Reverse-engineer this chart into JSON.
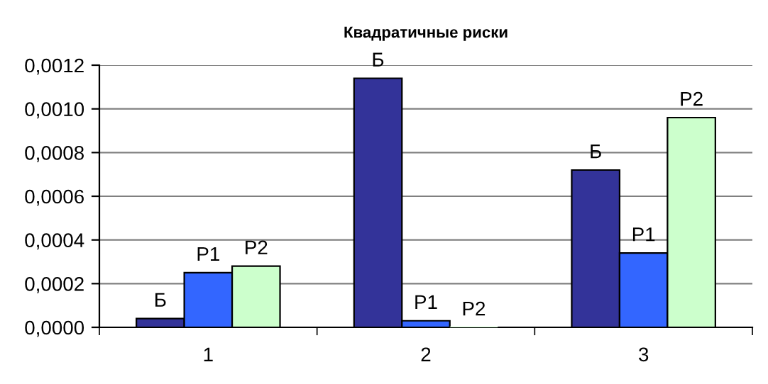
{
  "chart_data": {
    "type": "bar",
    "title": "Квадратичные риски",
    "categories": [
      "1",
      "2",
      "3"
    ],
    "series": [
      {
        "name": "Б",
        "color": "#333399",
        "values": [
          4e-05,
          0.00114,
          0.00072
        ]
      },
      {
        "name": "Р1",
        "color": "#3366ff",
        "values": [
          0.00025,
          3e-05,
          0.00034
        ]
      },
      {
        "name": "Р2",
        "color": "#ccffcc",
        "values": [
          0.00028,
          0,
          0.00096
        ]
      }
    ],
    "ylim": [
      0,
      0.0012
    ],
    "yticks": [
      {
        "value": 0,
        "label": "0,0000"
      },
      {
        "value": 0.0002,
        "label": "0,0002"
      },
      {
        "value": 0.0004,
        "label": "0,0004"
      },
      {
        "value": 0.0006,
        "label": "0,0006"
      },
      {
        "value": 0.0008,
        "label": "0,0008"
      },
      {
        "value": 0.001,
        "label": "0,0010"
      },
      {
        "value": 0.0012,
        "label": "0,0012"
      }
    ],
    "grid": "y",
    "legend": false
  }
}
